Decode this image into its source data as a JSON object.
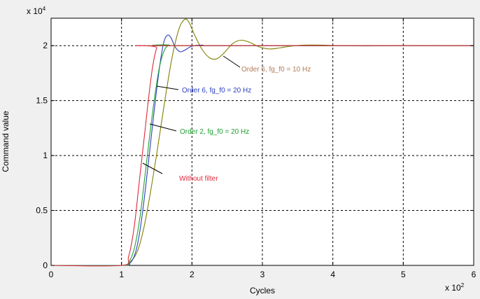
{
  "chart_data": {
    "type": "line",
    "title": "",
    "xlabel": "Cycles",
    "ylabel": "Command value",
    "x_multiplier_label": "x 10",
    "x_multiplier_exp": "2",
    "y_multiplier_label": "x 10",
    "y_multiplier_exp": "4",
    "xlim": [
      0,
      600
    ],
    "ylim": [
      0,
      22500
    ],
    "x_ticks": [
      0,
      100,
      200,
      300,
      400,
      500,
      600
    ],
    "x_tick_labels": [
      "0",
      "1",
      "2",
      "3",
      "4",
      "5",
      "6"
    ],
    "y_ticks": [
      0,
      5000,
      10000,
      15000,
      20000
    ],
    "y_tick_labels": [
      "0",
      "0.5",
      "1",
      "1.5",
      "2"
    ],
    "grid": true,
    "series": [
      {
        "name": "Without filter",
        "color": "#dd2a3b",
        "points": [
          [
            0,
            0
          ],
          [
            100,
            0
          ],
          [
            110,
            800
          ],
          [
            118,
            3500
          ],
          [
            125,
            7500
          ],
          [
            132,
            11500
          ],
          [
            138,
            15000
          ],
          [
            144,
            18000
          ],
          [
            150,
            19800
          ],
          [
            155,
            20000
          ],
          [
            600,
            20000
          ]
        ]
      },
      {
        "name": "Order 2, fg_f0 = 20 Hz",
        "color": "#1fa032",
        "points": [
          [
            0,
            0
          ],
          [
            100,
            0
          ],
          [
            110,
            300
          ],
          [
            118,
            1500
          ],
          [
            126,
            4300
          ],
          [
            133,
            8000
          ],
          [
            140,
            11800
          ],
          [
            147,
            15300
          ],
          [
            154,
            18100
          ],
          [
            161,
            19600
          ],
          [
            168,
            20050
          ],
          [
            178,
            20000
          ],
          [
            600,
            20000
          ]
        ]
      },
      {
        "name": "Order 6, fg_f0 = 20 Hz",
        "color": "#2b3fbf",
        "points": [
          [
            0,
            0
          ],
          [
            100,
            0
          ],
          [
            112,
            200
          ],
          [
            120,
            1200
          ],
          [
            127,
            3500
          ],
          [
            134,
            7000
          ],
          [
            141,
            11000
          ],
          [
            148,
            15000
          ],
          [
            155,
            18500
          ],
          [
            160,
            20300
          ],
          [
            165,
            20950
          ],
          [
            170,
            20750
          ],
          [
            176,
            19900
          ],
          [
            183,
            19450
          ],
          [
            190,
            19600
          ],
          [
            200,
            19950
          ],
          [
            215,
            20050
          ],
          [
            240,
            20000
          ],
          [
            600,
            20000
          ]
        ]
      },
      {
        "name": "Order 6, fg_f0 = 10 Hz",
        "color": "#808000",
        "points": [
          [
            0,
            0
          ],
          [
            100,
            0
          ],
          [
            110,
            200
          ],
          [
            122,
            1200
          ],
          [
            132,
            3500
          ],
          [
            142,
            7000
          ],
          [
            152,
            11000
          ],
          [
            162,
            15200
          ],
          [
            172,
            19000
          ],
          [
            182,
            21600
          ],
          [
            190,
            22400
          ],
          [
            196,
            22100
          ],
          [
            205,
            20800
          ],
          [
            215,
            19600
          ],
          [
            225,
            18900
          ],
          [
            235,
            18800
          ],
          [
            245,
            19300
          ],
          [
            258,
            20200
          ],
          [
            270,
            20500
          ],
          [
            282,
            20300
          ],
          [
            295,
            19900
          ],
          [
            310,
            19700
          ],
          [
            325,
            19800
          ],
          [
            340,
            19950
          ],
          [
            360,
            20050
          ],
          [
            385,
            20050
          ],
          [
            410,
            20000
          ],
          [
            450,
            19980
          ],
          [
            500,
            20000
          ],
          [
            600,
            20000
          ]
        ]
      }
    ],
    "annotations": [
      {
        "text": "Without filter",
        "color": "#dd2a3b",
        "target_series": 0
      },
      {
        "text": "Order 2, fg_f0 = 20 Hz",
        "color": "#1fa032",
        "target_series": 1
      },
      {
        "text": "Order 6, fg_f0 = 20 Hz",
        "color": "#2b3fbf",
        "target_series": 2
      },
      {
        "text": "Order 6, fg_f0 = 10 Hz",
        "color": "#b07a5a",
        "target_series": 3
      }
    ]
  }
}
